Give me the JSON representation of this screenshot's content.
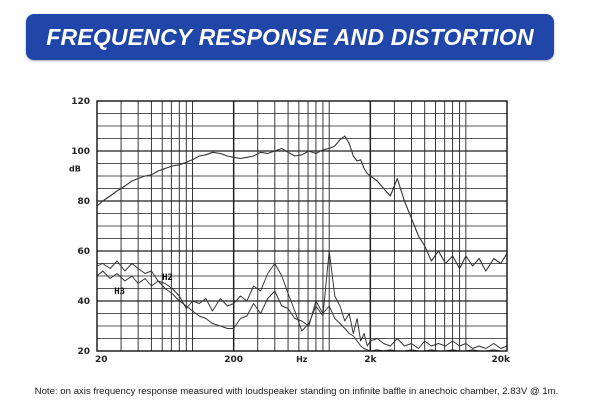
{
  "banner": {
    "title": "FREQUENCY RESPONSE AND DISTORTION"
  },
  "note": {
    "text": "Note: on axis frequency response measured with loudspeaker standing on infinite baffle in anechoic chamber, 2.83V @ 1m."
  },
  "chart_data": {
    "type": "line",
    "xscale": "log",
    "xlim": [
      20,
      20000
    ],
    "ylim": [
      20,
      120
    ],
    "grid": true,
    "xlabel": "Hz",
    "ylabel": "dB",
    "x_tick_values": [
      20,
      200,
      2000,
      20000
    ],
    "x_tick_labels": [
      "20",
      "200",
      "2k",
      "20k"
    ],
    "y_tick_values": [
      20,
      40,
      60,
      80,
      100,
      120
    ],
    "y_tick_labels": [
      "20",
      "40",
      "60",
      "80",
      "100",
      "120"
    ],
    "series": [
      {
        "color": "#333333",
        "x": [
          20,
          22,
          25,
          28,
          32,
          36,
          40,
          45,
          50,
          56,
          63,
          71,
          80,
          90,
          100,
          112,
          125,
          140,
          160,
          180,
          200,
          224,
          250,
          280,
          315,
          355,
          400,
          450,
          500,
          560,
          630,
          710,
          800,
          900,
          1000,
          1100,
          1200,
          1300,
          1400,
          1500,
          1600,
          1700,
          1800,
          1900,
          2000,
          2250,
          2500,
          2800,
          3150,
          3550,
          4000,
          4500,
          5000,
          5600,
          6300,
          7100,
          8000,
          9000,
          10000,
          11200,
          12500,
          14000,
          16000,
          18000,
          20000
        ],
        "y": [
          78,
          80,
          82,
          84,
          86,
          88,
          89,
          90,
          90.5,
          92,
          93,
          94,
          94.5,
          95.5,
          96.5,
          98,
          98.5,
          99.5,
          99,
          98,
          97.5,
          97,
          97.5,
          98,
          99.5,
          99,
          100,
          101,
          99.5,
          98,
          98.5,
          100,
          99,
          100.5,
          101,
          102,
          104.5,
          106,
          103,
          98,
          96,
          96.5,
          93,
          91,
          90,
          88,
          85,
          82,
          89,
          80,
          73,
          66,
          62,
          56,
          60,
          55,
          58,
          53,
          58,
          54,
          57,
          52,
          57,
          55,
          59
        ]
      },
      {
        "name": "H2",
        "color": "#333333",
        "x": [
          20,
          22,
          25,
          28,
          32,
          36,
          40,
          45,
          50,
          56,
          63,
          71,
          80,
          90,
          100,
          112,
          125,
          140,
          160,
          180,
          200,
          224,
          250,
          280,
          315,
          355,
          400,
          450,
          500,
          560,
          630,
          710,
          800,
          900,
          1000,
          1100,
          1200,
          1300,
          1400,
          1500,
          1600,
          1700,
          1800,
          1900,
          2000,
          2250,
          2500,
          2800,
          3150,
          3550,
          4000,
          4500,
          5000,
          5600,
          6300,
          7100,
          8000,
          9000,
          10000,
          11200,
          12500,
          14000,
          16000,
          18000,
          20000
        ],
        "y": [
          54,
          55,
          53,
          56,
          52,
          55,
          53,
          51,
          52,
          48,
          47,
          45,
          42,
          37,
          40,
          39,
          41,
          36,
          41,
          38,
          39,
          42,
          40,
          46,
          44,
          51,
          55,
          50,
          43,
          36,
          28,
          31,
          38,
          34,
          60,
          42,
          38,
          32,
          35,
          27,
          33,
          24,
          27,
          22,
          24,
          25,
          23,
          22,
          25,
          22,
          23,
          21,
          24,
          22,
          23,
          22,
          24,
          22,
          23,
          21,
          22,
          21,
          23,
          21,
          22
        ]
      },
      {
        "name": "H3",
        "color": "#333333",
        "x": [
          20,
          22,
          25,
          28,
          32,
          36,
          40,
          45,
          50,
          56,
          63,
          71,
          80,
          90,
          100,
          112,
          125,
          140,
          160,
          180,
          200,
          224,
          250,
          280,
          315,
          355,
          400,
          450,
          500,
          560,
          630,
          710,
          800,
          900,
          1000,
          1100,
          1200,
          1300,
          1400,
          1500,
          1600,
          1700,
          1800,
          1900,
          2000,
          2250,
          2500,
          2800,
          3150,
          3550,
          4000,
          4500,
          5000,
          5600,
          6300,
          7100,
          8000,
          9000,
          10000,
          11200,
          12500,
          14000,
          16000,
          18000,
          20000
        ],
        "y": [
          50,
          52,
          49,
          51,
          48,
          50,
          47,
          49,
          46,
          48,
          45,
          43,
          40,
          38,
          36,
          34,
          33,
          31,
          30,
          29,
          29,
          33,
          34,
          39,
          35,
          41,
          44,
          38,
          37,
          33,
          32,
          30,
          40,
          35,
          38,
          33,
          31,
          29,
          27,
          26,
          24,
          22,
          21,
          20.5,
          20,
          20.5,
          20,
          20.5,
          20,
          20,
          20.5,
          20,
          20,
          20.5,
          20,
          20,
          20.5,
          20,
          20,
          20.5,
          20,
          20,
          20.5,
          20,
          20
        ]
      }
    ]
  }
}
